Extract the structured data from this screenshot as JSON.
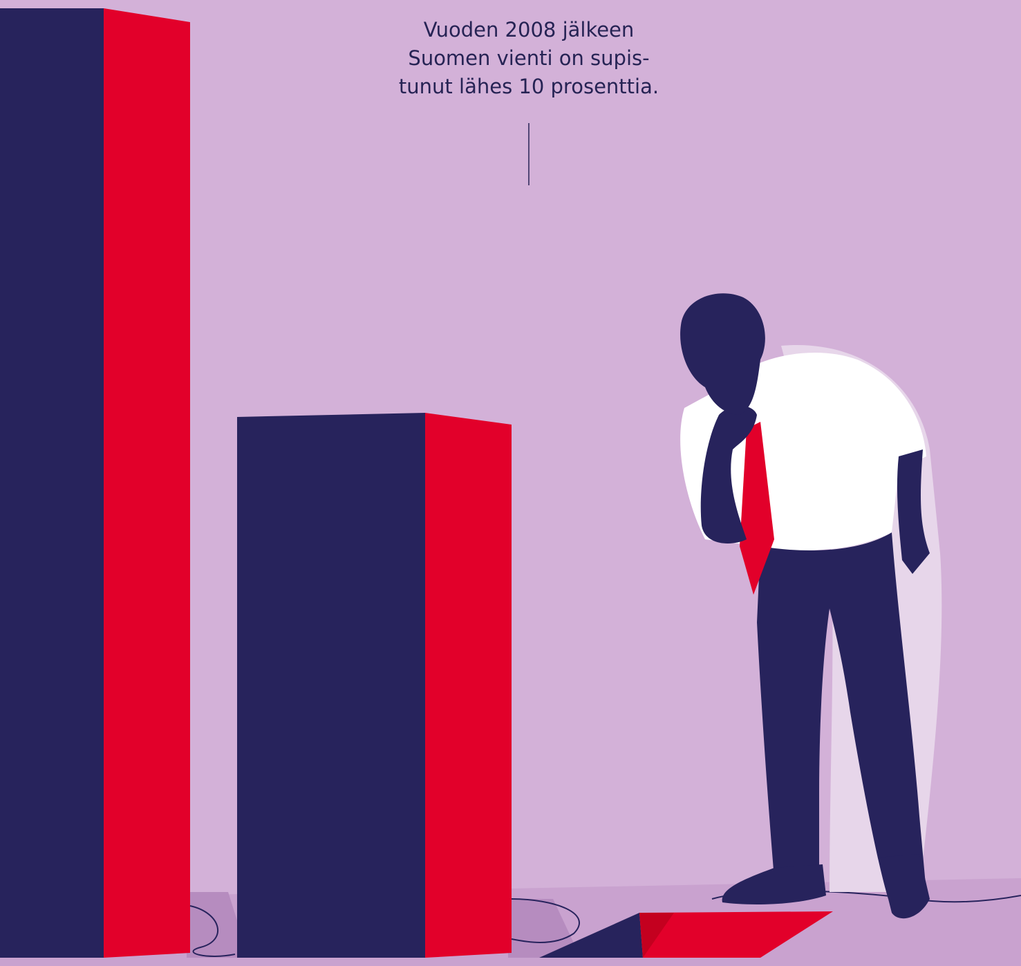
{
  "caption": {
    "lines": [
      "Vuoden 2008 jälkeen",
      "Suomen vienti on supis-",
      "tunut lähes 10 prosenttia."
    ]
  }
}
